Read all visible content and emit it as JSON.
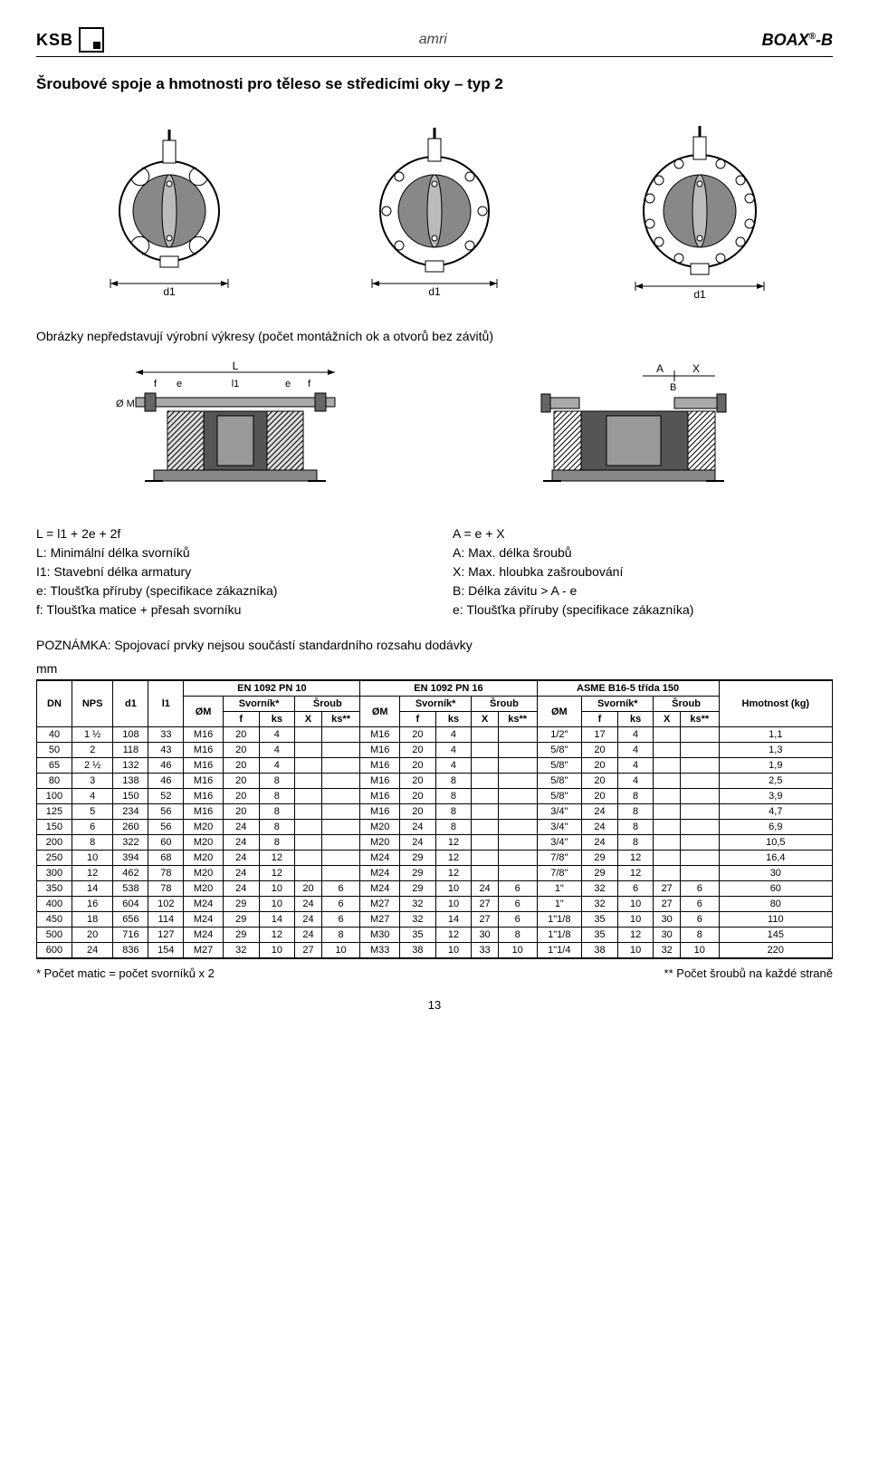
{
  "header": {
    "left_brand": "KSB",
    "center_brand": "amri",
    "right_brand": "BOAX",
    "right_brand_suffix": "-B"
  },
  "title": "Šroubové spoje a hmotnosti pro těleso se středicími oky – typ 2",
  "diagram_caption": "Obrázky nepředstavují výrobní výkresy (počet montážních ok a otvorů bez závitů)",
  "colLeft": {
    "eq": "L = l1 + 2e + 2f",
    "L": "L: Minimální délka svorníků",
    "I1": "I1: Stavební délka armatury",
    "e": "e: Tloušťka příruby (specifikace zákazníka)",
    "f": "f: Tloušťka matice + přesah svorníku"
  },
  "colRight": {
    "eq": "A = e + X",
    "A": "A: Max. délka šroubů",
    "X": "X: Max. hloubka zašroubování",
    "B": "B: Délka závitu > A - e",
    "e": "e: Tloušťka příruby (specifikace zákazníka)"
  },
  "note": "POZNÁMKA: Spojovací prvky nejsou součástí standardního rozsahu dodávky",
  "unit": "mm",
  "table": {
    "group1": "EN 1092 PN 10",
    "group2": "EN 1092 PN 16",
    "group3": "ASME B16-5 třída 150",
    "h_dn": "DN",
    "h_nps": "NPS",
    "h_d1": "d1",
    "h_l1": "l1",
    "h_om": "ØM",
    "h_svornik": "Svorník*",
    "h_sroub": "Šroub",
    "h_f": "f",
    "h_ks": "ks",
    "h_x": "X",
    "h_kss": "ks**",
    "h_hmot": "Hmotnost (kg)",
    "rows": [
      [
        "40",
        "1 ½",
        "108",
        "33",
        "M16",
        "20",
        "4",
        "",
        "",
        "M16",
        "20",
        "4",
        "",
        "",
        "1/2\"",
        "17",
        "4",
        "",
        "",
        "1,1"
      ],
      [
        "50",
        "2",
        "118",
        "43",
        "M16",
        "20",
        "4",
        "",
        "",
        "M16",
        "20",
        "4",
        "",
        "",
        "5/8\"",
        "20",
        "4",
        "",
        "",
        "1,3"
      ],
      [
        "65",
        "2 ½",
        "132",
        "46",
        "M16",
        "20",
        "4",
        "",
        "",
        "M16",
        "20",
        "4",
        "",
        "",
        "5/8\"",
        "20",
        "4",
        "",
        "",
        "1,9"
      ],
      [
        "80",
        "3",
        "138",
        "46",
        "M16",
        "20",
        "8",
        "",
        "",
        "M16",
        "20",
        "8",
        "",
        "",
        "5/8\"",
        "20",
        "4",
        "",
        "",
        "2,5"
      ],
      [
        "100",
        "4",
        "150",
        "52",
        "M16",
        "20",
        "8",
        "",
        "",
        "M16",
        "20",
        "8",
        "",
        "",
        "5/8\"",
        "20",
        "8",
        "",
        "",
        "3,9"
      ],
      [
        "125",
        "5",
        "234",
        "56",
        "M16",
        "20",
        "8",
        "",
        "",
        "M16",
        "20",
        "8",
        "",
        "",
        "3/4\"",
        "24",
        "8",
        "",
        "",
        "4,7"
      ],
      [
        "150",
        "6",
        "260",
        "56",
        "M20",
        "24",
        "8",
        "",
        "",
        "M20",
        "24",
        "8",
        "",
        "",
        "3/4\"",
        "24",
        "8",
        "",
        "",
        "6,9"
      ],
      [
        "200",
        "8",
        "322",
        "60",
        "M20",
        "24",
        "8",
        "",
        "",
        "M20",
        "24",
        "12",
        "",
        "",
        "3/4\"",
        "24",
        "8",
        "",
        "",
        "10,5"
      ],
      [
        "250",
        "10",
        "394",
        "68",
        "M20",
        "24",
        "12",
        "",
        "",
        "M24",
        "29",
        "12",
        "",
        "",
        "7/8\"",
        "29",
        "12",
        "",
        "",
        "16,4"
      ],
      [
        "300",
        "12",
        "462",
        "78",
        "M20",
        "24",
        "12",
        "",
        "",
        "M24",
        "29",
        "12",
        "",
        "",
        "7/8\"",
        "29",
        "12",
        "",
        "",
        "30"
      ],
      [
        "350",
        "14",
        "538",
        "78",
        "M20",
        "24",
        "10",
        "20",
        "6",
        "M24",
        "29",
        "10",
        "24",
        "6",
        "1\"",
        "32",
        "6",
        "27",
        "6",
        "60"
      ],
      [
        "400",
        "16",
        "604",
        "102",
        "M24",
        "29",
        "10",
        "24",
        "6",
        "M27",
        "32",
        "10",
        "27",
        "6",
        "1\"",
        "32",
        "10",
        "27",
        "6",
        "80"
      ],
      [
        "450",
        "18",
        "656",
        "114",
        "M24",
        "29",
        "14",
        "24",
        "6",
        "M27",
        "32",
        "14",
        "27",
        "6",
        "1\"1/8",
        "35",
        "10",
        "30",
        "6",
        "110"
      ],
      [
        "500",
        "20",
        "716",
        "127",
        "M24",
        "29",
        "12",
        "24",
        "8",
        "M30",
        "35",
        "12",
        "30",
        "8",
        "1\"1/8",
        "35",
        "12",
        "30",
        "8",
        "145"
      ],
      [
        "600",
        "24",
        "836",
        "154",
        "M27",
        "32",
        "10",
        "27",
        "10",
        "M33",
        "38",
        "10",
        "33",
        "10",
        "1\"1/4",
        "38",
        "10",
        "32",
        "10",
        "220"
      ]
    ]
  },
  "footnote1": "* Počet matic = počet svorníků x 2",
  "footnote2": "** Počet šroubů na každé straně",
  "pagenum": "13",
  "diagram_labels": {
    "d1": "d1",
    "l1": "l1",
    "L": "L",
    "f": "f",
    "e": "e",
    "A": "A",
    "X": "X",
    "B": "B",
    "OM": "Ø M"
  }
}
